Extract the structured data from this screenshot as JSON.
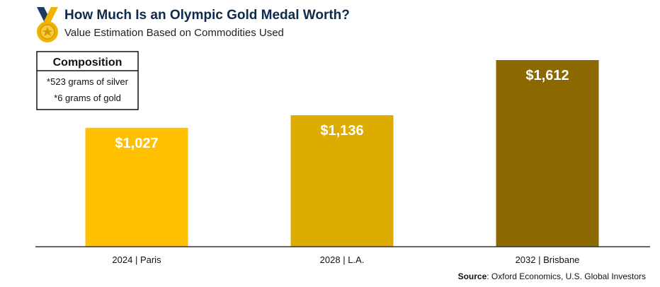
{
  "header": {
    "title": "How Much Is an Olympic Gold Medal Worth?",
    "subtitle": "Value Estimation Based on Commodities Used",
    "icon": "gold-medal-icon"
  },
  "composition": {
    "title": "Composition",
    "items": [
      "*523 grams of silver",
      "*6 grams of gold"
    ]
  },
  "footer": {
    "source_label": "Source",
    "source_text": ": Oxford Economics, U.S. Global Investors"
  },
  "colors": {
    "title": "#102a4c",
    "medal": "#f0b400",
    "medal_ribbon": "#1e3a63",
    "axis": "#333333"
  },
  "chart_data": {
    "type": "bar",
    "categories": [
      "2024 | Paris",
      "2028 | L.A.",
      "2032 | Brisbane"
    ],
    "values": [
      1027,
      1136,
      1612
    ],
    "value_labels": [
      "$1,027",
      "$1,136",
      "$1,612"
    ],
    "colors": [
      "#ffc000",
      "#deab00",
      "#8b6800"
    ],
    "title": "How Much Is an Olympic Gold Medal Worth?",
    "subtitle": "Value Estimation Based on Commodities Used",
    "ylim": [
      0,
      1612
    ],
    "grid": false
  }
}
